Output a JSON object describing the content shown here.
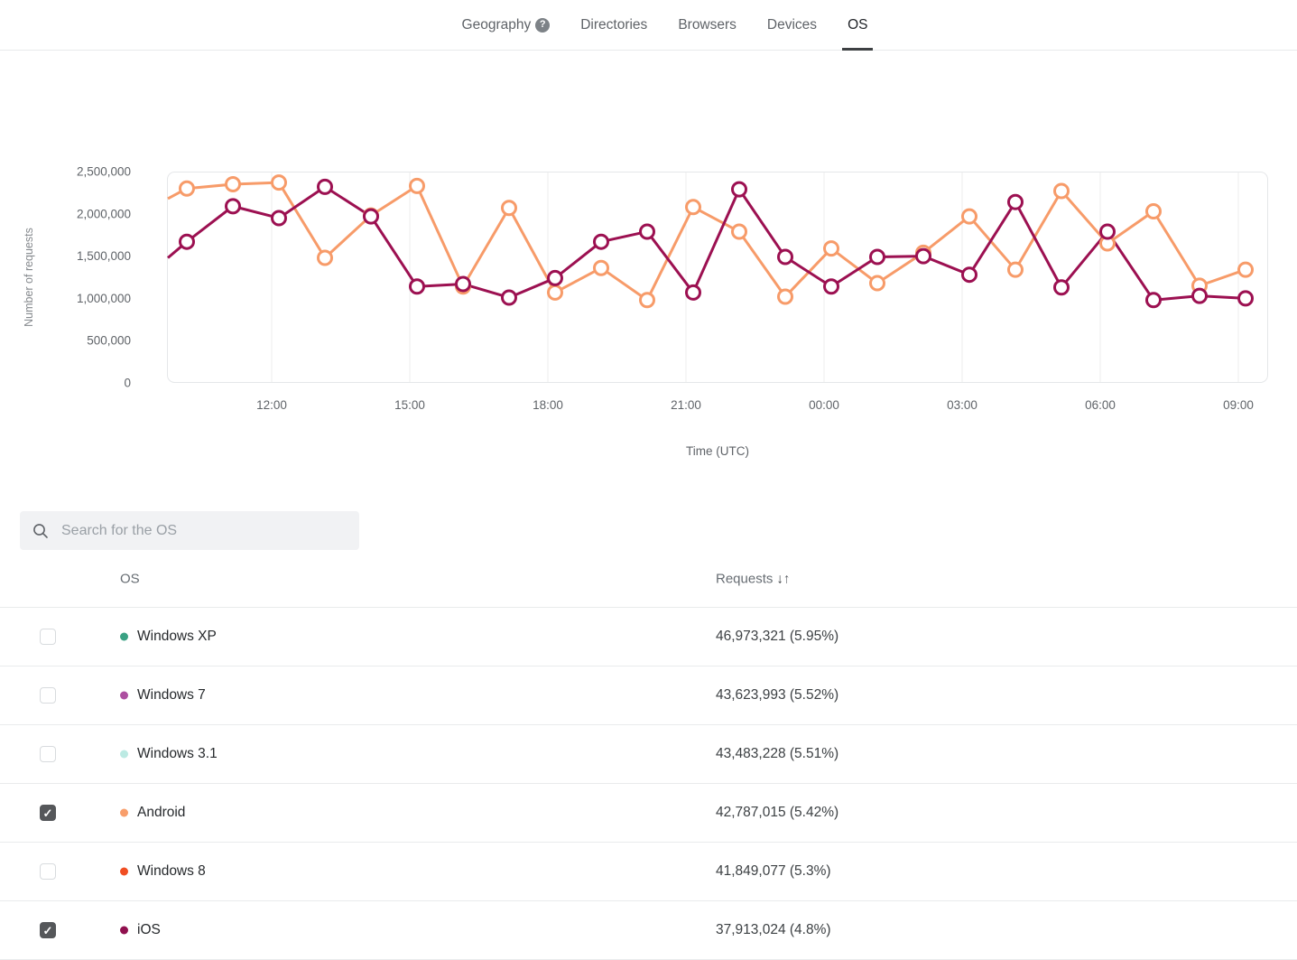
{
  "tabs": [
    {
      "label": "Geography",
      "has_help": true,
      "active": false
    },
    {
      "label": "Directories",
      "has_help": false,
      "active": false
    },
    {
      "label": "Browsers",
      "has_help": false,
      "active": false
    },
    {
      "label": "Devices",
      "has_help": false,
      "active": false
    },
    {
      "label": "OS",
      "has_help": false,
      "active": true
    }
  ],
  "icons": {
    "help_glyph": "?",
    "check_glyph": "✓",
    "sort_desc": "↓",
    "sort_asc": "↑"
  },
  "chart_data": {
    "type": "line",
    "xlabel": "Time (UTC)",
    "ylabel": "Number of requests",
    "ylim": [
      0,
      2500000
    ],
    "ytick_values": [
      0,
      500000,
      1000000,
      1500000,
      2000000,
      2500000
    ],
    "ytick_labels": [
      "0",
      "500,000",
      "1,000,000",
      "1,500,000",
      "2,000,000",
      "2,500,000"
    ],
    "x": [
      "10:00",
      "11:00",
      "12:00",
      "13:00",
      "14:00",
      "15:00",
      "16:00",
      "17:00",
      "18:00",
      "19:00",
      "20:00",
      "21:00",
      "22:00",
      "23:00",
      "00:00",
      "01:00",
      "02:00",
      "03:00",
      "04:00",
      "05:00",
      "06:00",
      "07:00",
      "08:00",
      "09:00"
    ],
    "xtick_labels": [
      "12:00",
      "15:00",
      "18:00",
      "21:00",
      "00:00",
      "03:00",
      "06:00",
      "09:00"
    ],
    "xtick_indices": [
      2,
      5,
      8,
      11,
      14,
      17,
      20,
      23
    ],
    "grid": "vertical-only",
    "legend_position": "none",
    "series": [
      {
        "name": "Android",
        "color": "#F79B69",
        "edge_start": 2180000,
        "values": [
          2300000,
          2350000,
          2370000,
          1480000,
          1980000,
          2330000,
          1140000,
          2070000,
          1070000,
          1360000,
          980000,
          2080000,
          1790000,
          1020000,
          1590000,
          1180000,
          1540000,
          1970000,
          1340000,
          2270000,
          1650000,
          2030000,
          1150000,
          1340000
        ]
      },
      {
        "name": "iOS",
        "color": "#9C1051",
        "edge_start": 1480000,
        "values": [
          1670000,
          2090000,
          1950000,
          2320000,
          1970000,
          1140000,
          1170000,
          1010000,
          1240000,
          1670000,
          1790000,
          1070000,
          2290000,
          1490000,
          1140000,
          1490000,
          1500000,
          1280000,
          2140000,
          1130000,
          1790000,
          980000,
          1030000,
          1000000
        ]
      }
    ]
  },
  "search": {
    "placeholder": "Search for the OS"
  },
  "table": {
    "os_header": "OS",
    "requests_header": "Requests",
    "rows": [
      {
        "os": "Windows XP",
        "dot_color": "#3AA183",
        "requests": "46,973,321 (5.95%)",
        "checked": false
      },
      {
        "os": "Windows 7",
        "dot_color": "#AD4FA0",
        "requests": "43,623,993 (5.52%)",
        "checked": false
      },
      {
        "os": "Windows 3.1",
        "dot_color": "#BCEAE3",
        "requests": "43,483,228 (5.51%)",
        "checked": false
      },
      {
        "os": "Android",
        "dot_color": "#F89E6B",
        "requests": "42,787,015 (5.42%)",
        "checked": true
      },
      {
        "os": "Windows 8",
        "dot_color": "#F04E23",
        "requests": "41,849,077 (5.3%)",
        "checked": false
      },
      {
        "os": "iOS",
        "dot_color": "#90104E",
        "requests": "37,913,024 (4.8%)",
        "checked": true
      }
    ]
  },
  "colors": {
    "tab_inactive": "#5f6368",
    "tab_active": "#1f2227",
    "tab_underline": "#3d4043",
    "grid_line": "#ececec",
    "plot_border": "#e5e7e9",
    "axis_text": "#5f6368",
    "axis_title": "#85898d",
    "series_android": "#F79B69",
    "series_ios": "#9C1051"
  }
}
